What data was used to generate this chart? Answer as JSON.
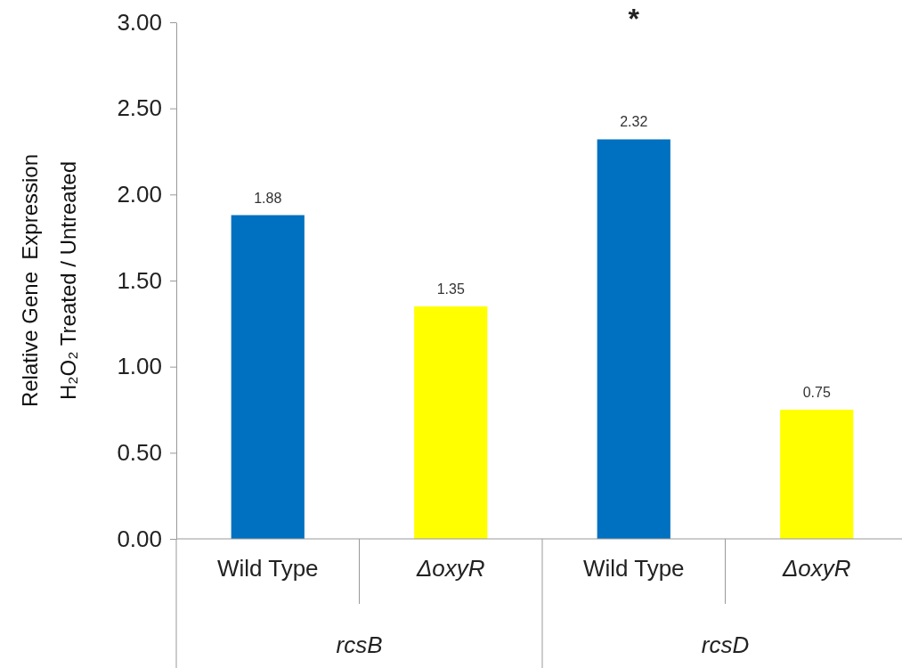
{
  "chart_data": {
    "type": "bar",
    "ylabel": "Relative Gene  Expression\nH₂O₂ Treated / Untreated",
    "categories": [
      "Wild Type",
      "ΔoxyR",
      "Wild Type",
      "ΔoxyR"
    ],
    "values": [
      1.88,
      1.35,
      2.32,
      0.75
    ],
    "colors": [
      "#0070c0",
      "#ffff00",
      "#0070c0",
      "#ffff00"
    ],
    "ylim": [
      0,
      3
    ],
    "yticks": [
      {
        "value": 0,
        "label": "0.00"
      },
      {
        "value": 0.5,
        "label": "0.50"
      },
      {
        "value": 1,
        "label": "1.00"
      },
      {
        "value": 1.5,
        "label": "1.50"
      },
      {
        "value": 2,
        "label": "2.00"
      },
      {
        "value": 2.5,
        "label": "2.50"
      },
      {
        "value": 3,
        "label": "3.00"
      }
    ],
    "data_labels": true,
    "annotations": [
      "*",
      "rcsB",
      "rcsD"
    ]
  }
}
